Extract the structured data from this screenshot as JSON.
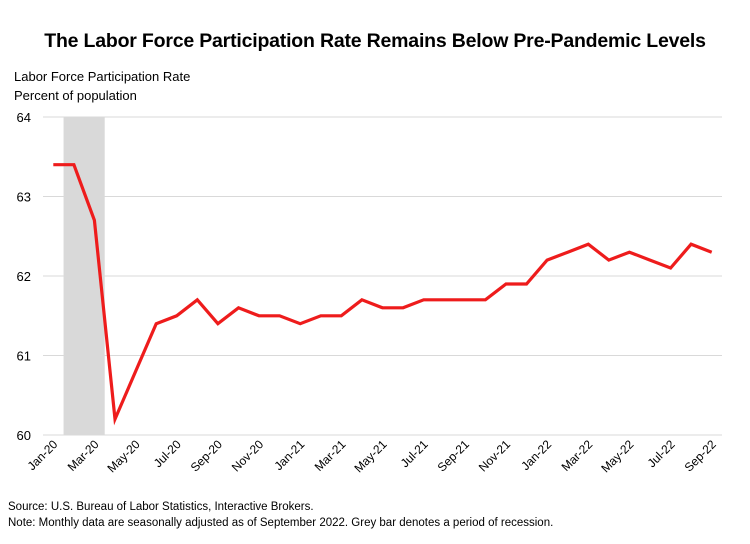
{
  "title": "The Labor Force Participation Rate Remains Below Pre-Pandemic Levels",
  "axis_label_line1": "Labor Force Participation Rate",
  "axis_label_line2": "Percent of population",
  "source": "Source: U.S. Bureau of Labor Statistics, Interactive Brokers.",
  "note": "Note: Monthly data are seasonally adjusted as of September 2022. Grey bar denotes a period of recession.",
  "colors": {
    "line": "#ee1c1c",
    "recession": "#d9d9d9",
    "grid": "#d9d9d9"
  },
  "chart_data": {
    "type": "line",
    "title": "The Labor Force Participation Rate Remains Below Pre-Pandemic Levels",
    "ylabel": "Labor Force Participation Rate, Percent of population",
    "xlabel": "",
    "ylim": [
      60,
      64
    ],
    "yticks": [
      60,
      61,
      62,
      63,
      64
    ],
    "grid": true,
    "x": [
      "Jan-20",
      "Feb-20",
      "Mar-20",
      "Apr-20",
      "May-20",
      "Jun-20",
      "Jul-20",
      "Aug-20",
      "Sep-20",
      "Oct-20",
      "Nov-20",
      "Dec-20",
      "Jan-21",
      "Feb-21",
      "Mar-21",
      "Apr-21",
      "May-21",
      "Jun-21",
      "Jul-21",
      "Aug-21",
      "Sep-21",
      "Oct-21",
      "Nov-21",
      "Dec-21",
      "Jan-22",
      "Feb-22",
      "Mar-22",
      "Apr-22",
      "May-22",
      "Jun-22",
      "Jul-22",
      "Aug-22",
      "Sep-22"
    ],
    "xtick_labels": [
      "Jan-20",
      "Mar-20",
      "May-20",
      "Jul-20",
      "Sep-20",
      "Nov-20",
      "Jan-21",
      "Mar-21",
      "May-21",
      "Jul-21",
      "Sep-21",
      "Nov-21",
      "Jan-22",
      "Mar-22",
      "May-22",
      "Jul-22",
      "Sep-22"
    ],
    "series": [
      {
        "name": "Labor Force Participation Rate",
        "values": [
          63.4,
          63.4,
          62.7,
          60.2,
          60.8,
          61.4,
          61.5,
          61.7,
          61.4,
          61.6,
          61.5,
          61.5,
          61.4,
          61.5,
          61.5,
          61.7,
          61.6,
          61.6,
          61.7,
          61.7,
          61.7,
          61.7,
          61.9,
          61.9,
          62.2,
          62.3,
          62.4,
          62.2,
          62.3,
          62.2,
          62.1,
          62.4,
          62.3
        ]
      }
    ],
    "shaded_region": {
      "label": "recession",
      "start": "Feb-20",
      "end": "Apr-20"
    }
  }
}
